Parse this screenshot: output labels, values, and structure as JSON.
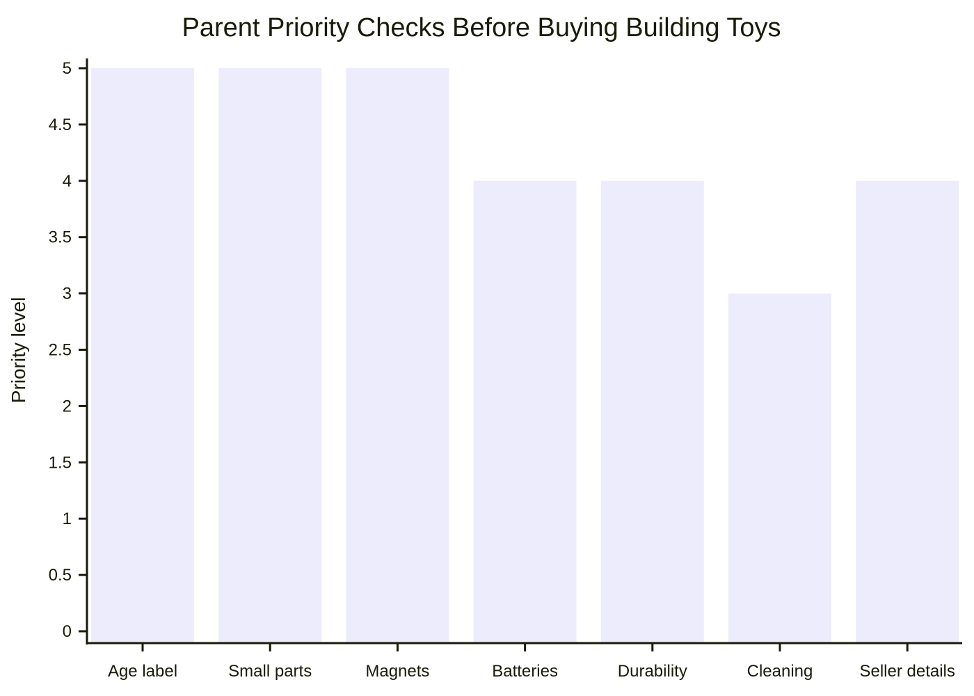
{
  "chart_data": {
    "type": "bar",
    "title": "Parent Priority Checks Before Buying Building Toys",
    "xlabel": "",
    "ylabel": "Priority level",
    "categories": [
      "Age label",
      "Small parts",
      "Magnets",
      "Batteries",
      "Durability",
      "Cleaning",
      "Seller details"
    ],
    "values": [
      5,
      5,
      5,
      4,
      4,
      3,
      4
    ],
    "ylim": [
      0,
      5
    ],
    "yticks": [
      "0",
      "0.5",
      "1",
      "1.5",
      "2",
      "2.5",
      "3",
      "3.5",
      "4",
      "4.5",
      "5"
    ],
    "bar_color": "#ececfd",
    "axis_color": "#1a1a0a",
    "grid": false,
    "legend": "none"
  }
}
